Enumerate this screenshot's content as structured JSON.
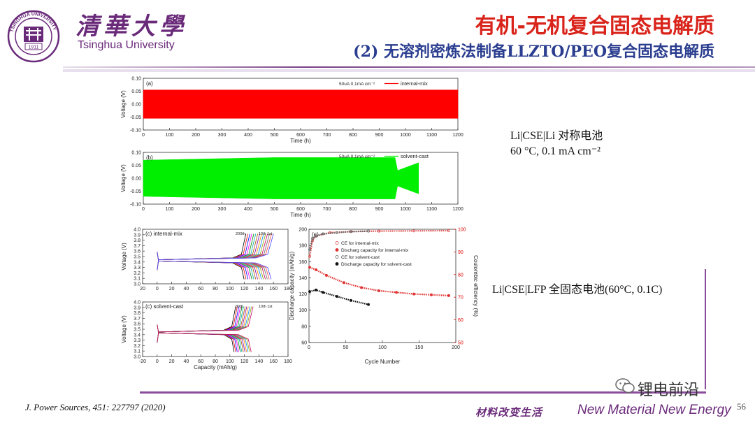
{
  "header": {
    "university_cn": "清華大學",
    "university_en": "Tsinghua University",
    "seal_year": "1911",
    "seal_ring": "TSINGHUA UNIVERSITY",
    "title": "有机-无机复合固态电解质",
    "subtitle": "(2) 无溶剂密炼法制备LLZTO/PEO复合固态电解质"
  },
  "notes": {
    "symmetric_line1": "Li|CSE|Li 对称电池",
    "symmetric_line2": "60 °C, 0.1 mA cm⁻²",
    "fullcell": "Li|CSE|LFP 全固态电池(60°C, 0.1C)"
  },
  "footer": {
    "reference": "J. Power Sources, 451: 227797 (2020)",
    "slogan_cn": "材料改变生活",
    "slogan_en": "New Material New Energy",
    "page": "56",
    "wechat": "锂电前沿"
  },
  "colors": {
    "accent_red": "#d9241b",
    "accent_blue": "#2a3d8f",
    "brand_purple": "#6a2a7a"
  },
  "chart_data": [
    {
      "type": "line",
      "panel": "(a)",
      "xlabel": "Time (h)",
      "ylabel": "Voltage (V)",
      "xlim": [
        0,
        1200
      ],
      "ylim": [
        -0.1,
        0.1
      ],
      "xticks": [
        "0",
        "100",
        "200",
        "300",
        "400",
        "500",
        "600",
        "700",
        "800",
        "900",
        "1000",
        "1100",
        "1200"
      ],
      "yticks": [
        "0.10",
        "0.05",
        "0.00",
        "-0.05",
        "-0.10"
      ],
      "annotation": "50uA  0.1mA cm⁻²",
      "series": [
        {
          "name": "internal-mix",
          "color": "#ff0000",
          "envelope": [
            [
              0,
              -0.055,
              0.055
            ],
            [
              1200,
              -0.055,
              0.055
            ]
          ]
        }
      ]
    },
    {
      "type": "line",
      "panel": "(b)",
      "xlabel": "Time (h)",
      "ylabel": "Voltage (V)",
      "xlim": [
        0,
        1200
      ],
      "ylim": [
        -0.1,
        0.1
      ],
      "xticks": [
        "0",
        "100",
        "200",
        "300",
        "400",
        "500",
        "600",
        "700",
        "800",
        "900",
        "1000",
        "1100",
        "1200"
      ],
      "yticks": [
        "0.10",
        "0.05",
        "0.00",
        "-0.05",
        "-0.10"
      ],
      "annotation": "50uA  0.1mA cm⁻²",
      "series": [
        {
          "name": "solvent-cast",
          "color": "#00ee00",
          "envelope": [
            [
              0,
              -0.07,
              0.07
            ],
            [
              500,
              -0.08,
              0.08
            ],
            [
              960,
              -0.08,
              0.08
            ],
            [
              970,
              -0.03,
              0.03
            ],
            [
              1050,
              -0.06,
              0.06
            ]
          ]
        }
      ]
    },
    {
      "type": "line",
      "panel": "(c)",
      "title": "internal-mix",
      "xlabel": "",
      "ylabel": "Voltage (V)",
      "xlim": [
        -20,
        180
      ],
      "ylim": [
        2.9,
        4.1
      ],
      "xticks": [
        "20",
        "0",
        "20",
        "40",
        "60",
        "80",
        "100",
        "120",
        "140",
        "160",
        "180"
      ],
      "yticks": [
        "4.0",
        "3.9",
        "3.8",
        "3.7",
        "3.6",
        "3.5",
        "3.4",
        "3.3",
        "3.2",
        "3.1",
        "3.0"
      ],
      "labels": [
        "200th",
        "10th 1st"
      ],
      "curves": {
        "charge_plateau": 3.45,
        "discharge_plateau": 3.38,
        "capacity_range": [
          122,
          160
        ]
      }
    },
    {
      "type": "line",
      "panel": "(c)",
      "title": "solvent-cast",
      "xlabel": "Capacity (mAh/g)",
      "ylabel": "Voltage (V)",
      "xlim": [
        -20,
        180
      ],
      "ylim": [
        2.9,
        4.1
      ],
      "xticks": [
        "-20",
        "0",
        "20",
        "40",
        "60",
        "80",
        "100",
        "120",
        "140",
        "160",
        "180"
      ],
      "yticks": [
        "4.0",
        "3.9",
        "3.8",
        "3.7",
        "3.6",
        "3.5",
        "3.4",
        "3.3",
        "3.2",
        "3.1",
        "3.0"
      ],
      "labels": [
        "80th",
        "10th 1st"
      ],
      "curves": {
        "charge_plateau": 3.46,
        "discharge_plateau": 3.4,
        "capacity_range": [
          108,
          132
        ]
      }
    },
    {
      "type": "scatter",
      "panel": "(e)",
      "xlabel": "Cycle Number",
      "ylabel": "Discharge capacity (mAh/g)",
      "y2label": "Coulombic efficiency (%)",
      "xlim": [
        0,
        210
      ],
      "ylim": [
        60,
        200
      ],
      "y2lim": [
        50,
        100
      ],
      "xticks": [
        "0",
        "50",
        "100",
        "150",
        "200"
      ],
      "yticks": [
        "200",
        "180",
        "160",
        "140",
        "120",
        "100",
        "80",
        "60"
      ],
      "y2ticks": [
        "100",
        "90",
        "80",
        "70",
        "60",
        "50"
      ],
      "legend": [
        "CE for internal-mix",
        "Discharg capacity for internal-mix",
        "CE for solvent-cast",
        "Discharge capacity for solvent-cast"
      ],
      "series": [
        {
          "name": "CE for internal-mix",
          "axis": "y2",
          "points": [
            [
              1,
              88
            ],
            [
              5,
              95
            ],
            [
              10,
              97
            ],
            [
              30,
              98.5
            ],
            [
              60,
              99
            ],
            [
              100,
              99.2
            ],
            [
              150,
              99.3
            ],
            [
              200,
              99.4
            ]
          ]
        },
        {
          "name": "Discharg capacity for internal-mix",
          "axis": "y",
          "points": [
            [
              1,
              153
            ],
            [
              10,
              150
            ],
            [
              25,
              143
            ],
            [
              50,
              134
            ],
            [
              75,
              128
            ],
            [
              100,
              124
            ],
            [
              125,
              122
            ],
            [
              150,
              120
            ],
            [
              175,
              119
            ],
            [
              200,
              118
            ]
          ]
        },
        {
          "name": "CE for solvent-cast",
          "axis": "y2",
          "points": [
            [
              1,
              91
            ],
            [
              5,
              96
            ],
            [
              10,
              97
            ],
            [
              20,
              98
            ],
            [
              40,
              98.5
            ],
            [
              60,
              99
            ],
            [
              85,
              99.2
            ]
          ]
        },
        {
          "name": "Discharge capacity for solvent-cast",
          "axis": "y",
          "points": [
            [
              1,
              123
            ],
            [
              10,
              125
            ],
            [
              20,
              122
            ],
            [
              40,
              117
            ],
            [
              60,
              112
            ],
            [
              85,
              107
            ]
          ]
        }
      ]
    }
  ]
}
